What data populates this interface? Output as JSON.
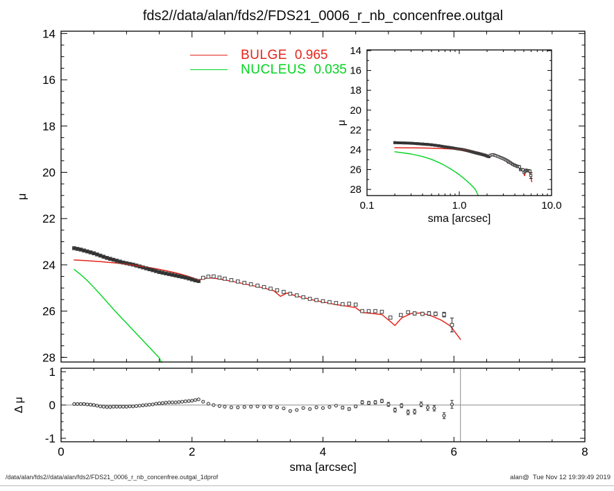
{
  "title": "fds2//data/alan/fds2/FDS21_0006_r_nb_concenfree.outgal",
  "legend": {
    "entries": [
      {
        "label": "BULGE",
        "value": "0.965",
        "color": "#e3241b"
      },
      {
        "label": "NUCLEUS",
        "value": "0.035",
        "color": "#00d41e"
      }
    ]
  },
  "footer": {
    "left": "/data/alan/fds2//data/alan/fds2/FDS21_0006_r_nb_concenfree.outgal_1dprof",
    "right": "alan@  Tue Nov 12 19:39:49 2019"
  },
  "chart_data": {
    "type": "line+scatter",
    "description": "Galaxy surface-brightness profile decomposition: main linear panel, log-x inset, and residual panel",
    "colors": {
      "bulge": "#e3241b",
      "nucleus": "#00d41e",
      "data_marker": "#3c3c3c",
      "grid_gray": "#8a8a8a"
    },
    "main_panel": {
      "xlabel": "",
      "ylabel": "μ",
      "xlim": [
        0,
        8
      ],
      "ylim": [
        28.2,
        13.9
      ],
      "xticks": [
        0,
        2,
        4,
        6,
        8
      ],
      "xminor": [
        0.5,
        1,
        1.5,
        2.5,
        3,
        3.5,
        4.5,
        5,
        5.5,
        6.5,
        7,
        7.5
      ],
      "yticks": [
        14,
        16,
        18,
        20,
        22,
        24,
        26,
        28
      ],
      "ytick_labels": [
        "14",
        "16",
        "18",
        "20",
        "22",
        "24",
        "26",
        "28"
      ],
      "yminor": [
        14.5,
        15,
        15.5,
        16.5,
        17,
        17.5,
        18.5,
        19,
        19.5,
        20.5,
        21,
        21.5,
        22.5,
        23,
        23.5,
        24.5,
        25,
        25.5,
        26.5,
        27,
        27.5,
        28
      ]
    },
    "inset_panel": {
      "xlabel": "sma [arcsec]",
      "ylabel": "μ",
      "xscale": "log",
      "xlim": [
        0.1,
        10
      ],
      "ylim": [
        28.62,
        13.93
      ],
      "xticks": [
        0.1,
        1,
        10
      ],
      "xtick_labels": [
        "0.1",
        "1.0",
        "10.0"
      ],
      "xminor": [
        0.2,
        0.3,
        0.4,
        0.5,
        0.6,
        0.7,
        0.8,
        0.9,
        2,
        3,
        4,
        5,
        6,
        7,
        8,
        9
      ],
      "yticks": [
        14,
        16,
        18,
        20,
        22,
        24,
        26,
        28
      ],
      "ytick_labels": [
        "14",
        "16",
        "18",
        "20",
        "22",
        "24",
        "26",
        "28"
      ],
      "yminor": [
        15,
        17,
        19,
        21,
        23,
        25,
        27
      ]
    },
    "residual_panel": {
      "xlabel": "sma [arcsec]",
      "ylabel": "Δ μ",
      "xlim": [
        0,
        8
      ],
      "ylim": [
        -1.104,
        1.104
      ],
      "xticks": [
        0,
        2,
        4,
        6,
        8
      ],
      "xtick_labels": [
        "0",
        "2",
        "4",
        "6",
        "8"
      ],
      "xminor": [
        0.5,
        1,
        1.5,
        2.5,
        3,
        3.5,
        4.5,
        5,
        5.5,
        6.5,
        7,
        7.5
      ],
      "yticks": [
        -1,
        0,
        1
      ],
      "ytick_labels": [
        "-1",
        "0",
        "1"
      ],
      "yminor": [
        -0.75,
        -0.5,
        -0.25,
        0.25,
        0.5,
        0.75
      ],
      "hline_y": 0,
      "vline_x": 6.1
    },
    "series": {
      "profile": [
        [
          0.2,
          23.28
        ],
        [
          0.25,
          23.31
        ],
        [
          0.3,
          23.34
        ],
        [
          0.35,
          23.38
        ],
        [
          0.4,
          23.42
        ],
        [
          0.45,
          23.46
        ],
        [
          0.5,
          23.5
        ],
        [
          0.55,
          23.55
        ],
        [
          0.6,
          23.6
        ],
        [
          0.65,
          23.65
        ],
        [
          0.7,
          23.7
        ],
        [
          0.75,
          23.74
        ],
        [
          0.8,
          23.78
        ],
        [
          0.85,
          23.82
        ],
        [
          0.9,
          23.86
        ],
        [
          0.95,
          23.9
        ],
        [
          1.0,
          23.93
        ],
        [
          1.05,
          23.96
        ],
        [
          1.1,
          23.99
        ],
        [
          1.15,
          24.03
        ],
        [
          1.2,
          24.07
        ],
        [
          1.25,
          24.11
        ],
        [
          1.3,
          24.15
        ],
        [
          1.35,
          24.19
        ],
        [
          1.4,
          24.23
        ],
        [
          1.45,
          24.27
        ],
        [
          1.5,
          24.31
        ],
        [
          1.55,
          24.34
        ],
        [
          1.6,
          24.37
        ],
        [
          1.65,
          24.4
        ],
        [
          1.7,
          24.43
        ],
        [
          1.75,
          24.46
        ],
        [
          1.8,
          24.49
        ],
        [
          1.85,
          24.52
        ],
        [
          1.9,
          24.55
        ],
        [
          1.95,
          24.59
        ],
        [
          2.0,
          24.63
        ],
        [
          2.05,
          24.67
        ],
        [
          2.1,
          24.7
        ],
        [
          2.17,
          24.56
        ],
        [
          2.25,
          24.51
        ],
        [
          2.33,
          24.5
        ],
        [
          2.42,
          24.55
        ],
        [
          2.5,
          24.6
        ],
        [
          2.6,
          24.66
        ],
        [
          2.7,
          24.72
        ],
        [
          2.8,
          24.78
        ],
        [
          2.9,
          24.84
        ],
        [
          3.0,
          24.9
        ],
        [
          3.1,
          24.96
        ],
        [
          3.2,
          25.03
        ],
        [
          3.3,
          25.1
        ],
        [
          3.4,
          25.17
        ],
        [
          3.5,
          25.25
        ],
        [
          3.6,
          25.32
        ],
        [
          3.7,
          25.4
        ],
        [
          3.8,
          25.47
        ],
        [
          3.9,
          25.52
        ],
        [
          4.0,
          25.57
        ],
        [
          4.1,
          25.61
        ],
        [
          4.2,
          25.65
        ],
        [
          4.3,
          25.7
        ],
        [
          4.4,
          25.68
        ],
        [
          4.5,
          25.72
        ],
        [
          4.6,
          26.0
        ],
        [
          4.7,
          26.0
        ],
        [
          4.8,
          26.0
        ],
        [
          4.9,
          26.03
        ],
        [
          5.03,
          26.28,
          0.06
        ],
        [
          5.19,
          26.17,
          0.06
        ],
        [
          5.3,
          26.05,
          0.06
        ],
        [
          5.4,
          26.1,
          0.07
        ],
        [
          5.52,
          26.12,
          0.07
        ],
        [
          5.62,
          26.1,
          0.08
        ],
        [
          5.72,
          26.12,
          0.08
        ],
        [
          5.85,
          26.15,
          0.1
        ],
        [
          5.97,
          26.6,
          0.3
        ]
      ],
      "bulge_model": [
        [
          0.2,
          23.79
        ],
        [
          0.4,
          23.82
        ],
        [
          0.6,
          23.86
        ],
        [
          0.8,
          23.91
        ],
        [
          1.0,
          23.97
        ],
        [
          1.2,
          24.05
        ],
        [
          1.4,
          24.14
        ],
        [
          1.6,
          24.25
        ],
        [
          1.8,
          24.38
        ],
        [
          1.95,
          24.5
        ],
        [
          2.05,
          24.6
        ],
        [
          2.1,
          24.66
        ],
        [
          2.17,
          24.6
        ],
        [
          2.25,
          24.56
        ],
        [
          2.35,
          24.58
        ],
        [
          2.5,
          24.65
        ],
        [
          2.7,
          24.76
        ],
        [
          2.9,
          24.88
        ],
        [
          3.1,
          25.0
        ],
        [
          3.25,
          25.12
        ],
        [
          3.35,
          25.36
        ],
        [
          3.45,
          25.22
        ],
        [
          3.6,
          25.35
        ],
        [
          3.75,
          25.45
        ],
        [
          3.9,
          25.55
        ],
        [
          4.05,
          25.63
        ],
        [
          4.2,
          25.72
        ],
        [
          4.35,
          25.78
        ],
        [
          4.5,
          25.85
        ],
        [
          4.6,
          26.06
        ],
        [
          4.75,
          26.1
        ],
        [
          4.9,
          26.15
        ],
        [
          5.0,
          26.38
        ],
        [
          5.1,
          26.62
        ],
        [
          5.2,
          26.3
        ],
        [
          5.35,
          26.1
        ],
        [
          5.5,
          26.08
        ],
        [
          5.65,
          26.2
        ],
        [
          5.8,
          26.38
        ],
        [
          5.95,
          26.65
        ],
        [
          6.1,
          27.22
        ]
      ],
      "nucleus_model": [
        [
          0.2,
          24.2
        ],
        [
          0.3,
          24.42
        ],
        [
          0.4,
          24.68
        ],
        [
          0.5,
          24.97
        ],
        [
          0.6,
          25.28
        ],
        [
          0.7,
          25.6
        ],
        [
          0.8,
          25.92
        ],
        [
          0.9,
          26.22
        ],
        [
          1.0,
          26.52
        ],
        [
          1.1,
          26.82
        ],
        [
          1.2,
          27.12
        ],
        [
          1.3,
          27.42
        ],
        [
          1.4,
          27.72
        ],
        [
          1.5,
          28.02
        ],
        [
          1.6,
          28.6
        ]
      ],
      "residuals": [
        [
          0.2,
          0.03,
          0.01
        ],
        [
          0.25,
          0.03,
          0.01
        ],
        [
          0.3,
          0.03,
          0.01
        ],
        [
          0.35,
          0.03,
          0.01
        ],
        [
          0.4,
          0.02,
          0.01
        ],
        [
          0.45,
          0.01,
          0.01
        ],
        [
          0.5,
          0.0,
          0.01
        ],
        [
          0.55,
          -0.02,
          0.01
        ],
        [
          0.6,
          -0.04,
          0.01
        ],
        [
          0.65,
          -0.05,
          0.01
        ],
        [
          0.7,
          -0.06,
          0.01
        ],
        [
          0.75,
          -0.06,
          0.01
        ],
        [
          0.8,
          -0.05,
          0.01
        ],
        [
          0.85,
          -0.05,
          0.01
        ],
        [
          0.9,
          -0.05,
          0.01
        ],
        [
          0.95,
          -0.05,
          0.01
        ],
        [
          1.0,
          -0.05,
          0.01
        ],
        [
          1.05,
          -0.04,
          0.01
        ],
        [
          1.1,
          -0.04,
          0.01
        ],
        [
          1.15,
          -0.03,
          0.01
        ],
        [
          1.2,
          -0.02,
          0.01
        ],
        [
          1.25,
          -0.01,
          0.01
        ],
        [
          1.3,
          0.0,
          0.01
        ],
        [
          1.35,
          0.01,
          0.01
        ],
        [
          1.4,
          0.02,
          0.01
        ],
        [
          1.45,
          0.04,
          0.01
        ],
        [
          1.5,
          0.05,
          0.01
        ],
        [
          1.55,
          0.06,
          0.01
        ],
        [
          1.6,
          0.07,
          0.01
        ],
        [
          1.65,
          0.08,
          0.01
        ],
        [
          1.7,
          0.08,
          0.01
        ],
        [
          1.75,
          0.08,
          0.01
        ],
        [
          1.8,
          0.09,
          0.01
        ],
        [
          1.85,
          0.1,
          0.01
        ],
        [
          1.9,
          0.11,
          0.01
        ],
        [
          1.95,
          0.12,
          0.01
        ],
        [
          2.0,
          0.13,
          0.02
        ],
        [
          2.05,
          0.15,
          0.02
        ],
        [
          2.1,
          0.17,
          0.02
        ],
        [
          2.17,
          0.1,
          0.02
        ],
        [
          2.25,
          0.04,
          0.02
        ],
        [
          2.33,
          0.0,
          0.02
        ],
        [
          2.42,
          -0.03,
          0.02
        ],
        [
          2.5,
          -0.05,
          0.02
        ],
        [
          2.6,
          -0.07,
          0.02
        ],
        [
          2.7,
          -0.07,
          0.02
        ],
        [
          2.8,
          -0.06,
          0.02
        ],
        [
          2.9,
          -0.05,
          0.02
        ],
        [
          3.0,
          -0.04,
          0.02
        ],
        [
          3.1,
          -0.06,
          0.02
        ],
        [
          3.2,
          -0.05,
          0.02
        ],
        [
          3.3,
          -0.07,
          0.03
        ],
        [
          3.4,
          -0.1,
          0.03
        ],
        [
          3.5,
          -0.18,
          0.03
        ],
        [
          3.6,
          -0.15,
          0.03
        ],
        [
          3.7,
          -0.09,
          0.03
        ],
        [
          3.8,
          -0.12,
          0.03
        ],
        [
          3.9,
          -0.07,
          0.03
        ],
        [
          4.0,
          -0.09,
          0.03
        ],
        [
          4.1,
          -0.06,
          0.03
        ],
        [
          4.2,
          -0.02,
          0.03
        ],
        [
          4.3,
          -0.08,
          0.04
        ],
        [
          4.4,
          -0.12,
          0.04
        ],
        [
          4.5,
          -0.04,
          0.04
        ],
        [
          4.6,
          0.08,
          0.05
        ],
        [
          4.7,
          0.06,
          0.05
        ],
        [
          4.8,
          0.08,
          0.05
        ],
        [
          4.9,
          0.12,
          0.05
        ],
        [
          5.0,
          0.02,
          0.06
        ],
        [
          5.1,
          -0.15,
          0.06
        ],
        [
          5.2,
          -0.02,
          0.06
        ],
        [
          5.3,
          -0.22,
          0.07
        ],
        [
          5.4,
          -0.2,
          0.07
        ],
        [
          5.5,
          0.02,
          0.07
        ],
        [
          5.6,
          -0.08,
          0.08
        ],
        [
          5.7,
          -0.1,
          0.08
        ],
        [
          5.85,
          -0.32,
          0.09
        ],
        [
          5.97,
          0.02,
          0.12
        ]
      ]
    }
  }
}
